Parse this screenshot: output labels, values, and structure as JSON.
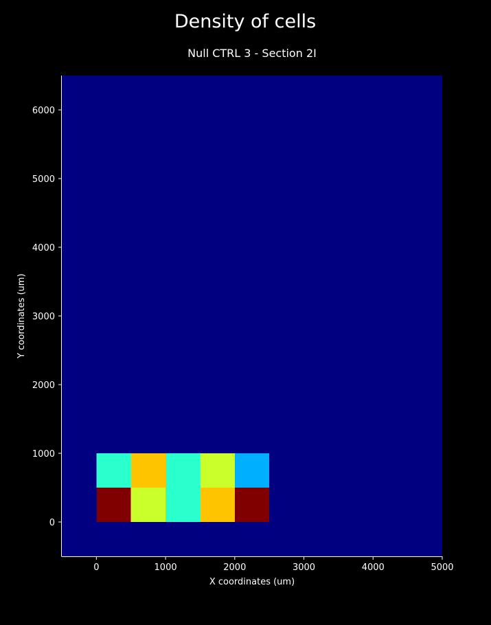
{
  "chart_data": {
    "type": "heatmap",
    "title": "Density of cells",
    "subtitle": "Null CTRL 3 - Section 2I",
    "xlabel": "X coordinates (um)",
    "ylabel": "Y coordinates (um)",
    "xlim": [
      -500,
      5000
    ],
    "ylim": [
      -500,
      6500
    ],
    "xticks": [
      0,
      1000,
      2000,
      3000,
      4000,
      5000
    ],
    "xtick_labels": [
      "0",
      "1000",
      "2000",
      "3000",
      "4000",
      "5000"
    ],
    "yticks": [
      0,
      1000,
      2000,
      3000,
      4000,
      5000,
      6000
    ],
    "ytick_labels": [
      "0",
      "1000",
      "2000",
      "3000",
      "4000",
      "5000",
      "6000"
    ],
    "grid": false,
    "colormap": "jet",
    "background_color": "#000000",
    "plot_background_color": "#000080",
    "cell_size": 500,
    "cells": [
      {
        "x": 0,
        "y": 0,
        "color": "#800000"
      },
      {
        "x": 500,
        "y": 0,
        "color": "#caff2c"
      },
      {
        "x": 1000,
        "y": 0,
        "color": "#2affce"
      },
      {
        "x": 1500,
        "y": 0,
        "color": "#ffc400"
      },
      {
        "x": 2000,
        "y": 0,
        "color": "#800000"
      },
      {
        "x": 0,
        "y": 500,
        "color": "#2affce"
      },
      {
        "x": 500,
        "y": 500,
        "color": "#ffc400"
      },
      {
        "x": 1000,
        "y": 500,
        "color": "#2affce"
      },
      {
        "x": 1500,
        "y": 500,
        "color": "#caff2c"
      },
      {
        "x": 2000,
        "y": 500,
        "color": "#00b0ff"
      }
    ]
  }
}
